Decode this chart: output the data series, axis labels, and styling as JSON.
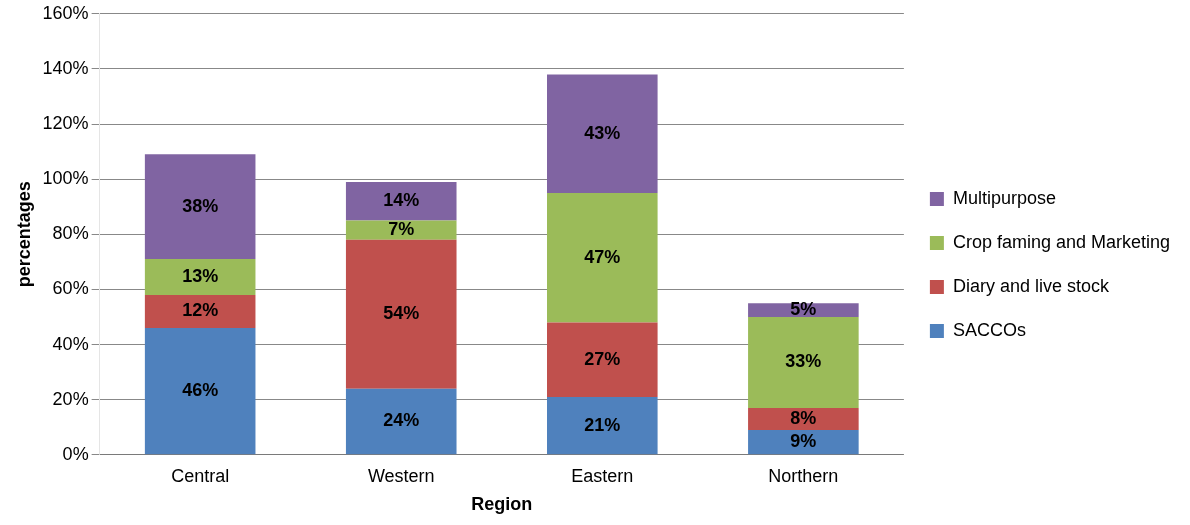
{
  "chart_data": {
    "type": "bar",
    "stacked": true,
    "xlabel": "Region",
    "ylabel": "percentages",
    "categories": [
      "Central",
      "Western",
      "Eastern",
      "Northern"
    ],
    "series": [
      {
        "name": "SACCOs",
        "color": "#4f81bd",
        "values": [
          46,
          24,
          21,
          9
        ],
        "value_labels": [
          "46%",
          "24%",
          "21%",
          "9%"
        ]
      },
      {
        "name": "Diary and live stock",
        "color": "#c0504d",
        "values": [
          12,
          54,
          27,
          8
        ],
        "value_labels": [
          "12%",
          "54%",
          "27%",
          "8%"
        ]
      },
      {
        "name": "Crop faming and Marketing",
        "color": "#9bbb59",
        "values": [
          13,
          7,
          47,
          33
        ],
        "value_labels": [
          "13%",
          "7%",
          "47%",
          "33%"
        ]
      },
      {
        "name": "Multipurpose",
        "color": "#8064a2",
        "values": [
          38,
          14,
          43,
          5
        ],
        "value_labels": [
          "38%",
          "14%",
          "43%",
          "5%"
        ]
      }
    ],
    "ylim": [
      0,
      160
    ],
    "yticks": [
      {
        "value": 0,
        "label": "0%"
      },
      {
        "value": 20,
        "label": "20%"
      },
      {
        "value": 40,
        "label": "40%"
      },
      {
        "value": 60,
        "label": "60%"
      },
      {
        "value": 80,
        "label": "80%"
      },
      {
        "value": 100,
        "label": "100%"
      },
      {
        "value": 120,
        "label": "120%"
      },
      {
        "value": 140,
        "label": "140%"
      },
      {
        "value": 160,
        "label": "160%"
      }
    ],
    "grid": "y",
    "legend": "right"
  }
}
